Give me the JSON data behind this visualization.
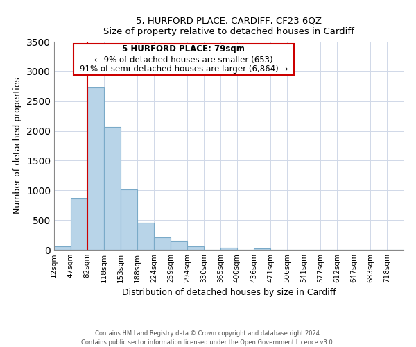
{
  "title": "5, HURFORD PLACE, CARDIFF, CF23 6QZ",
  "subtitle": "Size of property relative to detached houses in Cardiff",
  "xlabel": "Distribution of detached houses by size in Cardiff",
  "ylabel": "Number of detached properties",
  "bar_labels": [
    "12sqm",
    "47sqm",
    "82sqm",
    "118sqm",
    "153sqm",
    "188sqm",
    "224sqm",
    "259sqm",
    "294sqm",
    "330sqm",
    "365sqm",
    "400sqm",
    "436sqm",
    "471sqm",
    "506sqm",
    "541sqm",
    "577sqm",
    "612sqm",
    "647sqm",
    "683sqm",
    "718sqm"
  ],
  "bar_values": [
    55,
    860,
    2730,
    2060,
    1010,
    455,
    210,
    150,
    60,
    0,
    30,
    0,
    20,
    0,
    0,
    0,
    0,
    0,
    0,
    0,
    0
  ],
  "bar_color": "#b8d4e8",
  "bar_edge_color": "#7aaac8",
  "property_line_x": 82,
  "annotation_line1": "5 HURFORD PLACE: 79sqm",
  "annotation_line2": "← 9% of detached houses are smaller (653)",
  "annotation_line3": "91% of semi-detached houses are larger (6,864) →",
  "vline_color": "#cc0000",
  "annotation_box_edge": "#cc0000",
  "ylim": [
    0,
    3500
  ],
  "yticks": [
    0,
    500,
    1000,
    1500,
    2000,
    2500,
    3000,
    3500
  ],
  "footer1": "Contains HM Land Registry data © Crown copyright and database right 2024.",
  "footer2": "Contains public sector information licensed under the Open Government Licence v3.0.",
  "bin_edges": [
    12,
    47,
    82,
    118,
    153,
    188,
    224,
    259,
    294,
    330,
    365,
    400,
    436,
    471,
    506,
    541,
    577,
    612,
    647,
    683,
    718,
    753
  ]
}
